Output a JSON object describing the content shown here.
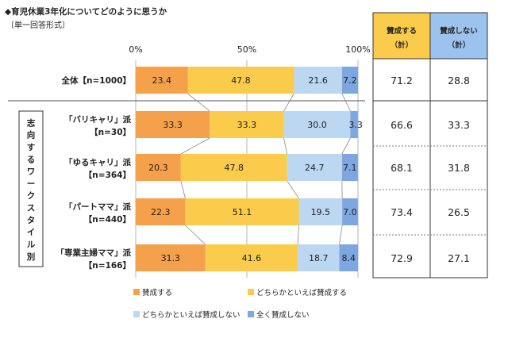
{
  "title": "◆育児休業3年化についてどのように思うか",
  "subtitle": "〔単一回答形式〕",
  "chart_data": {
    "type": "bar",
    "orientation": "horizontal",
    "stacked": true,
    "title": "育児休業3年化についてどのように思うか",
    "xlim": [
      0,
      100
    ],
    "x_ticks": [
      "0%",
      "50%",
      "100%"
    ],
    "group_label": "志向するワークスタイル別",
    "categories": [
      {
        "line1": "全体【n=1000】",
        "line2": ""
      },
      {
        "line1": "「バリキャリ」派",
        "line2": "【n=30】"
      },
      {
        "line1": "「ゆるキャリ」派",
        "line2": "【n=364】"
      },
      {
        "line1": "「パートママ」派",
        "line2": "【n=440】"
      },
      {
        "line1": "「専業主婦ママ」派",
        "line2": "【n=166】"
      }
    ],
    "series": [
      {
        "name": "賛成する",
        "color": "#F5A04A",
        "values": [
          23.4,
          33.3,
          20.3,
          22.3,
          31.3
        ]
      },
      {
        "name": "どちらかといえば賛成する",
        "color": "#FBCB4C",
        "values": [
          47.8,
          33.3,
          47.8,
          51.1,
          41.6
        ]
      },
      {
        "name": "どちらかといえば賛成しない",
        "color": "#BBD7F2",
        "values": [
          21.6,
          30.0,
          24.7,
          19.5,
          18.7
        ]
      },
      {
        "name": "全く賛成しない",
        "color": "#7EA6E0",
        "values": [
          7.2,
          3.3,
          7.1,
          7.0,
          8.4
        ]
      }
    ],
    "summary_table": {
      "headers": [
        {
          "line1": "賛成する",
          "line2": "（計）",
          "color": "#FBCB4C"
        },
        {
          "line1": "賛成しない",
          "line2": "（計）",
          "color": "#9CC3EE"
        }
      ],
      "rows": [
        [
          "71.2",
          "28.8"
        ],
        [
          "66.6",
          "33.3"
        ],
        [
          "68.1",
          "31.8"
        ],
        [
          "73.4",
          "26.5"
        ],
        [
          "72.9",
          "27.1"
        ]
      ]
    }
  }
}
